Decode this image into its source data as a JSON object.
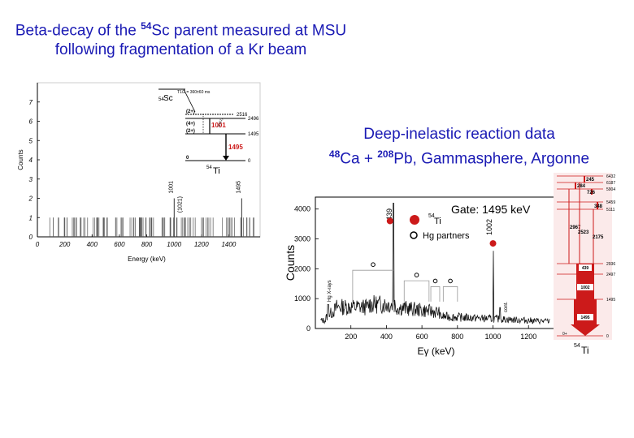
{
  "left_title": {
    "line1_pre": "Beta-decay of the ",
    "line1_sup": "54",
    "line1_post": "Sc parent measured at MSU",
    "line2": "following fragmentation of a Kr beam"
  },
  "right_title": {
    "line1": "Deep-inelastic reaction data",
    "line2_sup1": "48",
    "line2_mid1": "Ca + ",
    "line2_sup2": "208",
    "line2_post": "Pb, Gammasphere, Argonne"
  },
  "chart_data": [
    {
      "type": "bar",
      "title": "",
      "xlabel": "Energy (keV)",
      "ylabel": "Counts",
      "xlim": [
        0,
        1600
      ],
      "ylim": [
        0,
        8
      ],
      "x_ticks": [
        0,
        200,
        400,
        600,
        800,
        1000,
        1200,
        1400
      ],
      "y_ticks": [
        0,
        1,
        2,
        3,
        4,
        5,
        6,
        7
      ],
      "peaks": [
        {
          "x": 1001,
          "y": 2,
          "label": "1001"
        },
        {
          "x": 1021,
          "y": 1,
          "label": "(1021)"
        },
        {
          "x": 1495,
          "y": 2,
          "label": "1495"
        }
      ],
      "inset_level_scheme": {
        "parent": "Sc",
        "parent_mass": "54",
        "halflife": "T1/2 = 360±60 ms",
        "daughter": "Ti",
        "daughter_mass": "54",
        "levels": [
          {
            "spin": "(2+)",
            "energy": "2516"
          },
          {
            "spin": "(4+)",
            "energy": "2496"
          },
          {
            "spin": "(2+)",
            "energy": "1495"
          },
          {
            "spin": "0",
            "energy": "0"
          }
        ],
        "transitions": [
          {
            "energy": "1001",
            "color": "#cc1a1a"
          },
          {
            "energy": "1495",
            "color": "#cc1a1a"
          },
          {
            "energy": "(1021)",
            "color": "#000000"
          }
        ]
      }
    },
    {
      "type": "line",
      "title": "Gate: 1495 keV",
      "xlabel": "Eγ (keV)",
      "ylabel": "Counts",
      "xlim": [
        0,
        1350
      ],
      "ylim": [
        0,
        4400
      ],
      "x_ticks": [
        200,
        400,
        600,
        800,
        1000,
        1200
      ],
      "y_ticks": [
        0,
        1000,
        2000,
        3000,
        4000
      ],
      "legend": [
        {
          "marker": "filled-circle",
          "color": "#cc1a1a",
          "label_sup": "54",
          "label": "Ti"
        },
        {
          "marker": "open-circle",
          "color": "#000000",
          "label": "Hg partners"
        }
      ],
      "peak_labels": [
        {
          "x": 439,
          "label": "439"
        },
        {
          "x": 1002,
          "label": "1002"
        }
      ],
      "annotations": [
        "Hg X-rays",
        "cont."
      ]
    },
    {
      "type": "diagram",
      "title": "",
      "daughter": "Ti",
      "daughter_mass": "54",
      "levels": [
        "6432",
        "6187",
        "5904",
        "5459",
        "5111",
        "2936",
        "2497",
        "1495",
        "0"
      ],
      "transitions": [
        "245",
        "284",
        "726",
        "348",
        "2967",
        "2523",
        "2175",
        "439",
        "1002",
        "1495"
      ],
      "ground_spin": "0+"
    }
  ]
}
